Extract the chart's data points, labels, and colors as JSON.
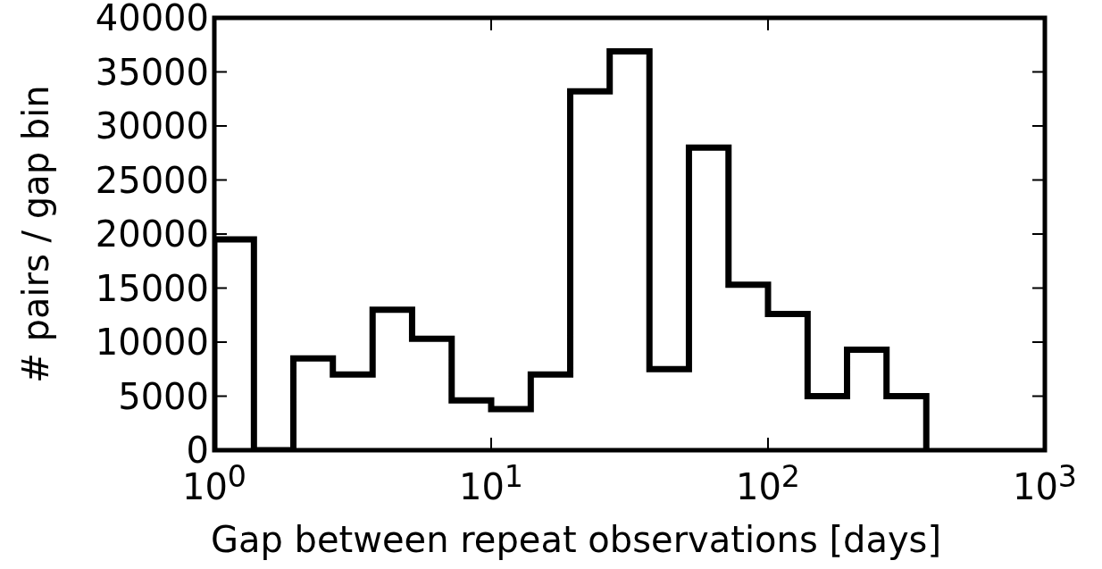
{
  "chart_data": {
    "type": "histogram",
    "xlabel": "Gap between repeat observations [days]",
    "ylabel": "# pairs / gap bin",
    "bins": [
      1,
      1.39,
      1.93,
      2.68,
      3.73,
      5.18,
      7.2,
      10,
      13.9,
      19.3,
      26.8,
      37.3,
      51.8,
      72,
      100,
      139,
      193,
      268,
      373
    ],
    "values": [
      19500,
      0,
      8500,
      7000,
      13000,
      10300,
      4600,
      3800,
      7000,
      33200,
      36900,
      7500,
      28000,
      15300,
      12600,
      5000,
      9300,
      5000
    ],
    "color": "#000000",
    "log": "x",
    "xlim": [
      1,
      1000
    ],
    "xticks": [
      {
        "value": 1,
        "label": "10$^{0}$"
      },
      {
        "value": 10,
        "label": "10$^{1}$"
      },
      {
        "value": 100,
        "label": "10$^{2}$"
      },
      {
        "value": 1000,
        "label": "10$^{3}$"
      }
    ],
    "ylim": [
      0,
      40000
    ],
    "yticks": [
      0,
      5000,
      10000,
      15000,
      20000,
      25000,
      30000,
      35000,
      40000
    ],
    "grid": false
  }
}
